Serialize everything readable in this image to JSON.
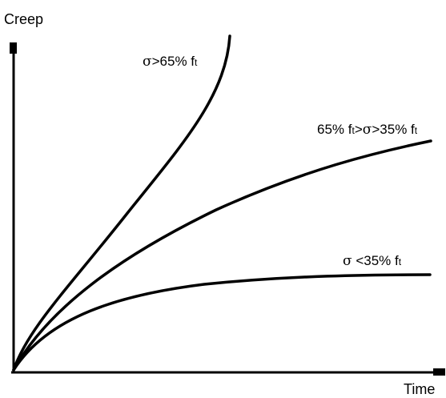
{
  "axes": {
    "y_label": "Creep",
    "x_label": "Time"
  },
  "curves": [
    {
      "label_parts": [
        "σ",
        ">65% f",
        "t"
      ]
    },
    {
      "label_parts": [
        "65% f",
        "t",
        ">",
        "σ",
        ">35% f",
        "t"
      ]
    },
    {
      "label_parts": [
        "σ",
        " <35% f",
        "t"
      ]
    }
  ],
  "colors": {
    "ink": "#000000",
    "background": "#ffffff"
  }
}
